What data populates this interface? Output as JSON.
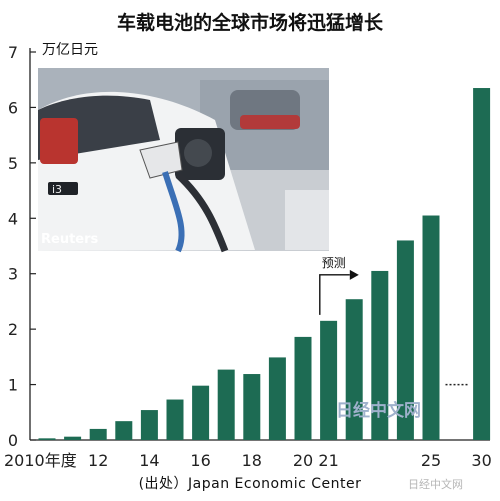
{
  "chart_data": {
    "type": "bar",
    "title": "车载电池的全球市场将迅猛增长",
    "ylabel": "万亿日元",
    "ylim": [
      0,
      7
    ],
    "yticks": [
      "0",
      "1",
      "2",
      "3",
      "4",
      "5",
      "6",
      "7"
    ],
    "categories": [
      "2010",
      "2011",
      "2012",
      "2013",
      "2014",
      "2015",
      "2016",
      "2017",
      "2018",
      "2019",
      "2020",
      "2021",
      "2022",
      "2023",
      "2024",
      "2025",
      "2030"
    ],
    "values": [
      0.03,
      0.06,
      0.2,
      0.34,
      0.54,
      0.73,
      0.98,
      1.27,
      1.19,
      1.49,
      1.86,
      2.15,
      2.54,
      3.05,
      3.6,
      4.05,
      6.35
    ],
    "xtick_labels": [
      {
        "label": "2010年度",
        "category": "2010"
      },
      {
        "label": "12",
        "category": "2012"
      },
      {
        "label": "14",
        "category": "2014"
      },
      {
        "label": "16",
        "category": "2016"
      },
      {
        "label": "18",
        "category": "2018"
      },
      {
        "label": "20",
        "category": "2020"
      },
      {
        "label": "21",
        "category": "2021"
      },
      {
        "label": "25",
        "category": "2025"
      },
      {
        "label": "30",
        "category": "2030"
      }
    ],
    "forecast_label": "预测",
    "forecast_from": "2021",
    "axis_break_after": "2025",
    "grid": false,
    "colors": {
      "bar": "#1d6b53"
    }
  },
  "source": "(出处）Japan Economic Center",
  "photo_credit": "Reuters",
  "photo_badge": "i3",
  "watermark": "日经中文网",
  "watermark_small": "日经中文网"
}
